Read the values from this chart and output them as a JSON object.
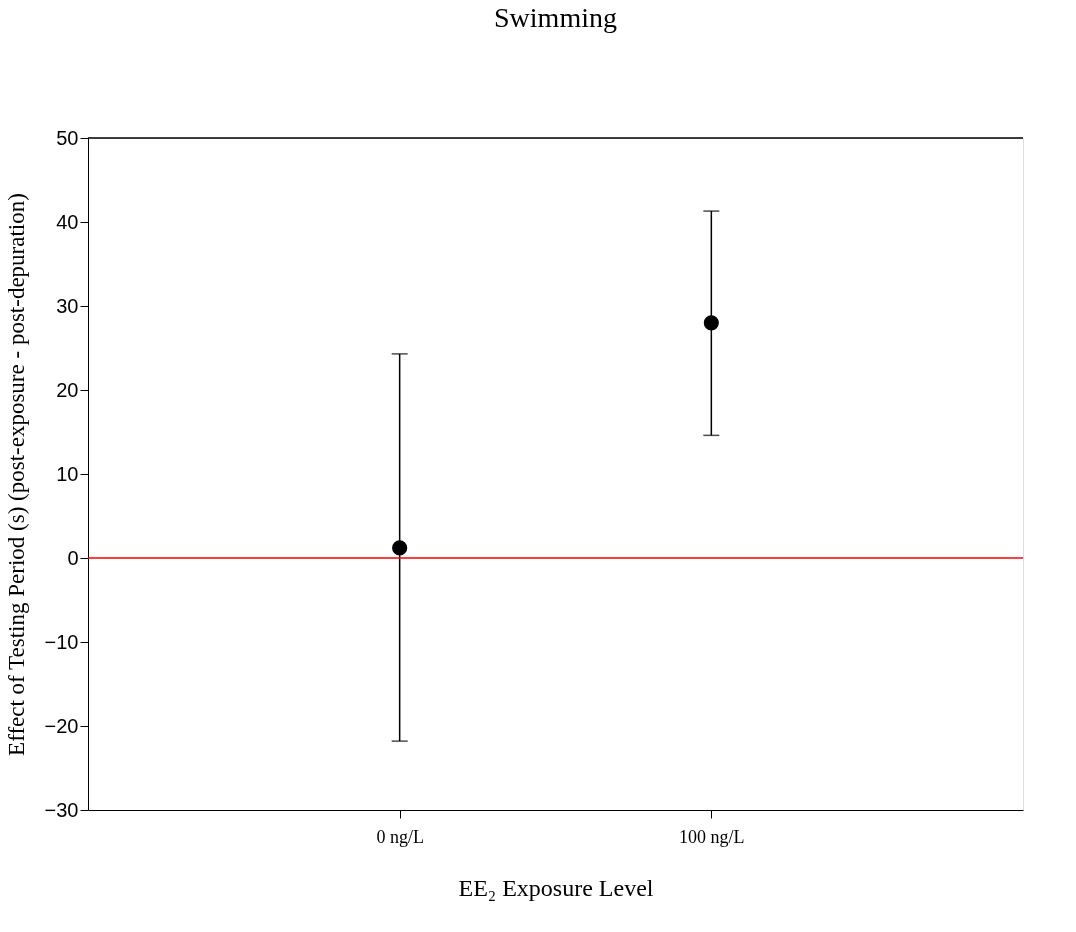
{
  "chart_data": {
    "type": "scatter",
    "title": "Swimming",
    "xlabel": "EE₂ Exposure Level",
    "ylabel": "Effect of Testing Period (s) (post-exposure - post-depuration)",
    "categories": [
      "0 ng/L",
      "100 ng/L"
    ],
    "series": [
      {
        "color": "#000000",
        "values": [
          1.2,
          28.0
        ],
        "errors": [
          [
            -21.8,
            24.3
          ],
          [
            14.6,
            41.3
          ]
        ]
      }
    ],
    "ylim": [
      -30,
      50
    ],
    "yticks": [
      -30,
      -20,
      -10,
      0,
      10,
      20,
      30,
      40,
      50
    ],
    "ref_lines": [
      {
        "axis": "y",
        "value": 0,
        "color": "#ff0000"
      }
    ],
    "marker": "circle",
    "grid": false
  }
}
